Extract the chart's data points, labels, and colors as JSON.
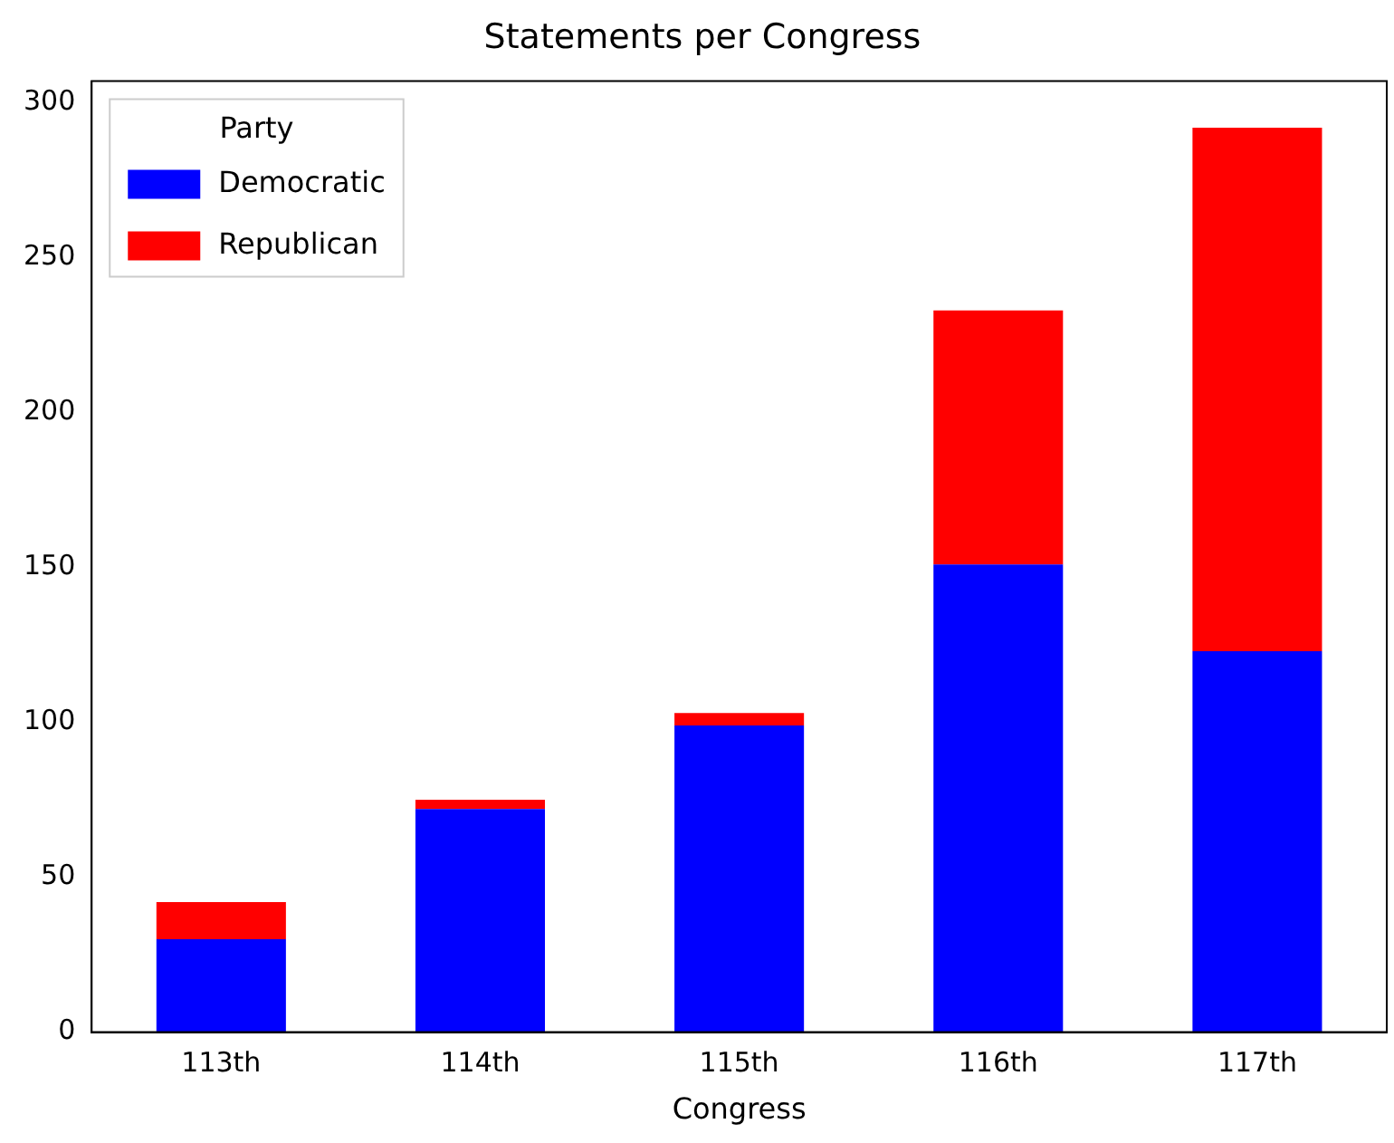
{
  "chart_data": {
    "type": "bar",
    "title": "Statements per Congress",
    "xlabel": "Congress",
    "legend_title": "Party",
    "categories": [
      "113th",
      "114th",
      "115th",
      "116th",
      "117th"
    ],
    "series": [
      {
        "name": "Democratic",
        "color": "#0000ff",
        "values": [
          30,
          72,
          99,
          151,
          123
        ]
      },
      {
        "name": "Republican",
        "color": "#ff0000",
        "values": [
          12,
          3,
          4,
          82,
          169
        ]
      }
    ],
    "stacked": true,
    "ylim": [
      0,
      307
    ],
    "yticks": [
      0,
      50,
      100,
      150,
      200,
      250,
      300
    ],
    "grid": false,
    "legend": "top left"
  }
}
